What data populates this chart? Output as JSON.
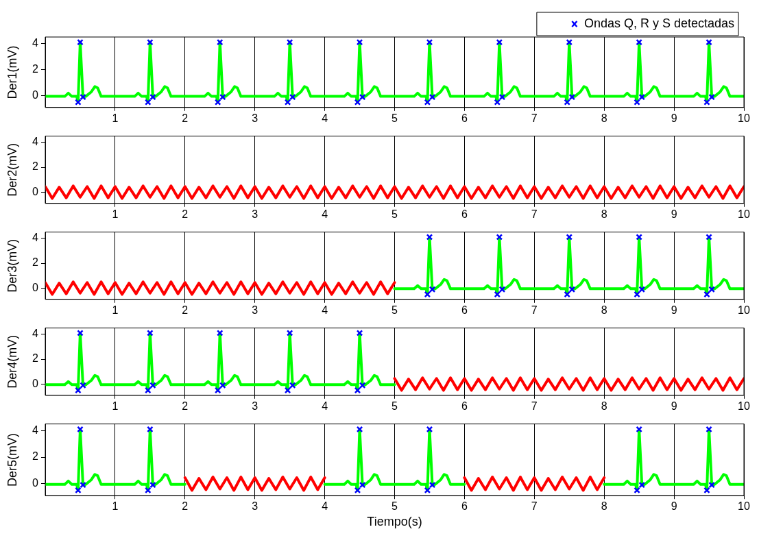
{
  "chart_data": [
    {
      "type": "line",
      "ylabel": "Der1(mV)",
      "xlim": [
        0,
        10
      ],
      "xticks": [
        1,
        2,
        3,
        4,
        5,
        6,
        7,
        8,
        9,
        10
      ],
      "ylim": [
        -0.9,
        4.5
      ],
      "yticks": [
        0,
        2,
        4
      ],
      "grid": "x",
      "legend": "top right",
      "series": [
        {
          "color": "#00ff00",
          "x": [
            0,
            0.28,
            0.33,
            0.38,
            0.45,
            0.47,
            0.5,
            0.54,
            0.58,
            0.66,
            0.71,
            0.75,
            0.8,
            1.28,
            1.33,
            1.38,
            1.45,
            1.47,
            1.5,
            1.54,
            1.58,
            1.66,
            1.71,
            1.75,
            1.8,
            2.28,
            2.33,
            2.38,
            2.45,
            2.47,
            2.5,
            2.54,
            2.58,
            2.66,
            2.71,
            2.75,
            2.8,
            3.28,
            3.33,
            3.38,
            3.45,
            3.47,
            3.5,
            3.54,
            3.58,
            3.66,
            3.71,
            3.75,
            3.8,
            4.28,
            4.33,
            4.38,
            4.45,
            4.47,
            4.5,
            4.54,
            4.58,
            4.66,
            4.71,
            4.75,
            4.8,
            5.28,
            5.33,
            5.38,
            5.45,
            5.47,
            5.5,
            5.54,
            5.58,
            5.66,
            5.71,
            5.75,
            5.8,
            6.28,
            6.33,
            6.38,
            6.45,
            6.47,
            6.5,
            6.54,
            6.58,
            6.66,
            6.71,
            6.75,
            6.8,
            7.28,
            7.33,
            7.38,
            7.45,
            7.47,
            7.5,
            7.54,
            7.58,
            7.66,
            7.71,
            7.75,
            7.8,
            8.28,
            8.33,
            8.38,
            8.45,
            8.47,
            8.5,
            8.54,
            8.58,
            8.66,
            8.71,
            8.75,
            8.8,
            9.28,
            9.33,
            9.38,
            9.45,
            9.47,
            9.5,
            9.54,
            9.58,
            9.66,
            9.71,
            9.75,
            9.8,
            10
          ],
          "values": [
            -0.05,
            -0.05,
            0.2,
            -0.05,
            -0.05,
            -0.5,
            4.1,
            -0.1,
            -0.05,
            0.3,
            0.7,
            0.6,
            -0.05,
            -0.05,
            0.2,
            -0.05,
            -0.05,
            -0.5,
            4.1,
            -0.1,
            -0.05,
            0.3,
            0.7,
            0.6,
            -0.05,
            -0.05,
            0.2,
            -0.05,
            -0.05,
            -0.5,
            4.1,
            -0.1,
            -0.05,
            0.3,
            0.7,
            0.6,
            -0.05,
            -0.05,
            0.2,
            -0.05,
            -0.05,
            -0.5,
            4.1,
            -0.1,
            -0.05,
            0.3,
            0.7,
            0.6,
            -0.05,
            -0.05,
            0.2,
            -0.05,
            -0.05,
            -0.5,
            4.1,
            -0.1,
            -0.05,
            0.3,
            0.7,
            0.6,
            -0.05,
            -0.05,
            0.2,
            -0.05,
            -0.05,
            -0.5,
            4.1,
            -0.1,
            -0.05,
            0.3,
            0.7,
            0.6,
            -0.05,
            -0.05,
            0.2,
            -0.05,
            -0.05,
            -0.5,
            4.1,
            -0.1,
            -0.05,
            0.3,
            0.7,
            0.6,
            -0.05,
            -0.05,
            0.2,
            -0.05,
            -0.05,
            -0.5,
            4.1,
            -0.1,
            -0.05,
            0.3,
            0.7,
            0.6,
            -0.05,
            -0.05,
            0.2,
            -0.05,
            -0.05,
            -0.5,
            4.1,
            -0.1,
            -0.05,
            0.3,
            0.7,
            0.6,
            -0.05,
            -0.05,
            0.2,
            -0.05,
            -0.05,
            -0.5,
            4.1,
            -0.1,
            -0.05,
            0.3,
            0.7,
            0.6,
            -0.05,
            -0.05
          ]
        },
        {
          "type": "scatter",
          "name": "Ondas Q, R y S detectadas",
          "color": "#0000ff",
          "marker": "cross",
          "x": [
            0.47,
            0.5,
            0.54,
            1.47,
            1.5,
            1.54,
            2.47,
            2.5,
            2.54,
            3.47,
            3.5,
            3.54,
            4.47,
            4.5,
            4.54,
            5.47,
            5.5,
            5.54,
            6.47,
            6.5,
            6.54,
            7.47,
            7.5,
            7.54,
            8.47,
            8.5,
            8.54,
            9.47,
            9.5,
            9.54
          ],
          "values": [
            -0.5,
            4.1,
            -0.1,
            -0.5,
            4.1,
            -0.1,
            -0.5,
            4.1,
            -0.1,
            -0.5,
            4.1,
            -0.1,
            -0.5,
            4.1,
            -0.1,
            -0.5,
            4.1,
            -0.1,
            -0.5,
            4.1,
            -0.1,
            -0.5,
            4.1,
            -0.1,
            -0.5,
            4.1,
            -0.1,
            -0.5,
            4.1,
            -0.1
          ]
        }
      ]
    },
    {
      "type": "line",
      "ylabel": "Der2(mV)",
      "xlim": [
        0,
        10
      ],
      "xticks": [
        1,
        2,
        3,
        4,
        5,
        6,
        7,
        8,
        9,
        10
      ],
      "ylim": [
        -0.9,
        4.5
      ],
      "yticks": [
        0,
        2,
        4
      ],
      "grid": "x",
      "series": [
        {
          "color": "#ff0000",
          "x": [
            0,
            0.1,
            0.2,
            0.3,
            0.4,
            0.5,
            0.6,
            0.7,
            0.8,
            0.9,
            1,
            1.1,
            1.2,
            1.3,
            1.4,
            1.5,
            1.6,
            1.7,
            1.8,
            1.9,
            2,
            2.1,
            2.2,
            2.3,
            2.4,
            2.5,
            2.6,
            2.7,
            2.8,
            2.9,
            3,
            3.1,
            3.2,
            3.3,
            3.4,
            3.5,
            3.6,
            3.7,
            3.8,
            3.9,
            4,
            4.1,
            4.2,
            4.3,
            4.4,
            4.5,
            4.6,
            4.7,
            4.8,
            4.9,
            5,
            5.1,
            5.2,
            5.3,
            5.4,
            5.5,
            5.6,
            5.7,
            5.8,
            5.9,
            6,
            6.1,
            6.2,
            6.3,
            6.4,
            6.5,
            6.6,
            6.7,
            6.8,
            6.9,
            7,
            7.1,
            7.2,
            7.3,
            7.4,
            7.5,
            7.6,
            7.7,
            7.8,
            7.9,
            8,
            8.1,
            8.2,
            8.3,
            8.4,
            8.5,
            8.6,
            8.7,
            8.8,
            8.9,
            9,
            9.1,
            9.2,
            9.3,
            9.4,
            9.5,
            9.6,
            9.7,
            9.8,
            9.9,
            10
          ],
          "values": [
            0.45,
            -0.5,
            0.4,
            -0.45,
            0.5,
            -0.4,
            0.45,
            -0.5,
            0.5,
            -0.45,
            0.45,
            -0.5,
            0.4,
            -0.45,
            0.5,
            -0.4,
            0.45,
            -0.5,
            0.5,
            -0.45,
            0.45,
            -0.5,
            0.4,
            -0.45,
            0.5,
            -0.4,
            0.45,
            -0.5,
            0.5,
            -0.45,
            0.45,
            -0.5,
            0.4,
            -0.45,
            0.5,
            -0.4,
            0.45,
            -0.5,
            0.5,
            -0.45,
            0.45,
            -0.5,
            0.4,
            -0.45,
            0.5,
            -0.4,
            0.45,
            -0.5,
            0.5,
            -0.45,
            0.45,
            -0.5,
            0.4,
            -0.45,
            0.5,
            -0.4,
            0.45,
            -0.5,
            0.5,
            -0.45,
            0.45,
            -0.5,
            0.4,
            -0.45,
            0.5,
            -0.4,
            0.45,
            -0.5,
            0.5,
            -0.45,
            0.45,
            -0.5,
            0.4,
            -0.45,
            0.5,
            -0.4,
            0.45,
            -0.5,
            0.5,
            -0.45,
            0.45,
            -0.5,
            0.4,
            -0.45,
            0.5,
            -0.4,
            0.45,
            -0.5,
            0.5,
            -0.45,
            0.45,
            -0.5,
            0.4,
            -0.45,
            0.5,
            -0.4,
            0.45,
            -0.5,
            0.5,
            -0.45,
            0.45
          ]
        }
      ]
    },
    {
      "type": "line",
      "ylabel": "Der3(mV)",
      "xlim": [
        0,
        10
      ],
      "xticks": [
        1,
        2,
        3,
        4,
        5,
        6,
        7,
        8,
        9,
        10
      ],
      "ylim": [
        -0.9,
        4.5
      ],
      "yticks": [
        0,
        2,
        4
      ],
      "grid": "x",
      "series": [
        {
          "color": "#ff0000",
          "x": [
            0,
            0.1,
            0.2,
            0.3,
            0.4,
            0.5,
            0.6,
            0.7,
            0.8,
            0.9,
            1,
            1.1,
            1.2,
            1.3,
            1.4,
            1.5,
            1.6,
            1.7,
            1.8,
            1.9,
            2,
            2.1,
            2.2,
            2.3,
            2.4,
            2.5,
            2.6,
            2.7,
            2.8,
            2.9,
            3,
            3.1,
            3.2,
            3.3,
            3.4,
            3.5,
            3.6,
            3.7,
            3.8,
            3.9,
            4,
            4.1,
            4.2,
            4.3,
            4.4,
            4.5,
            4.6,
            4.7,
            4.8,
            4.9,
            5
          ],
          "values": [
            0.45,
            -0.5,
            0.4,
            -0.45,
            0.5,
            -0.4,
            0.45,
            -0.5,
            0.5,
            -0.45,
            0.45,
            -0.5,
            0.4,
            -0.45,
            0.5,
            -0.4,
            0.45,
            -0.5,
            0.5,
            -0.45,
            0.45,
            -0.5,
            0.4,
            -0.45,
            0.5,
            -0.4,
            0.45,
            -0.5,
            0.5,
            -0.45,
            0.45,
            -0.5,
            0.4,
            -0.45,
            0.5,
            -0.4,
            0.45,
            -0.5,
            0.5,
            -0.45,
            0.45,
            -0.5,
            0.4,
            -0.45,
            0.5,
            -0.4,
            0.45,
            -0.5,
            0.5,
            -0.45,
            0.45
          ]
        },
        {
          "color": "#00ff00",
          "x": [
            5,
            5.28,
            5.33,
            5.38,
            5.45,
            5.47,
            5.5,
            5.54,
            5.58,
            5.66,
            5.71,
            5.75,
            5.8,
            6.28,
            6.33,
            6.38,
            6.45,
            6.47,
            6.5,
            6.54,
            6.58,
            6.66,
            6.71,
            6.75,
            6.8,
            7.28,
            7.33,
            7.38,
            7.45,
            7.47,
            7.5,
            7.54,
            7.58,
            7.66,
            7.71,
            7.75,
            7.8,
            8.28,
            8.33,
            8.38,
            8.45,
            8.47,
            8.5,
            8.54,
            8.58,
            8.66,
            8.71,
            8.75,
            8.8,
            9.28,
            9.33,
            9.38,
            9.45,
            9.47,
            9.5,
            9.54,
            9.58,
            9.66,
            9.71,
            9.75,
            9.8,
            10
          ],
          "values": [
            -0.05,
            -0.05,
            0.2,
            -0.05,
            -0.05,
            -0.5,
            4.1,
            -0.1,
            -0.05,
            0.3,
            0.7,
            0.6,
            -0.05,
            -0.05,
            0.2,
            -0.05,
            -0.05,
            -0.5,
            4.1,
            -0.1,
            -0.05,
            0.3,
            0.7,
            0.6,
            -0.05,
            -0.05,
            0.2,
            -0.05,
            -0.05,
            -0.5,
            4.1,
            -0.1,
            -0.05,
            0.3,
            0.7,
            0.6,
            -0.05,
            -0.05,
            0.2,
            -0.05,
            -0.05,
            -0.5,
            4.1,
            -0.1,
            -0.05,
            0.3,
            0.7,
            0.6,
            -0.05,
            -0.05,
            0.2,
            -0.05,
            -0.05,
            -0.5,
            4.1,
            -0.1,
            -0.05,
            0.3,
            0.7,
            0.6,
            -0.05,
            -0.05
          ]
        },
        {
          "type": "scatter",
          "color": "#0000ff",
          "marker": "cross",
          "x": [
            5.47,
            5.5,
            5.54,
            6.47,
            6.5,
            6.54,
            7.47,
            7.5,
            7.54,
            8.47,
            8.5,
            8.54,
            9.47,
            9.5,
            9.54
          ],
          "values": [
            -0.5,
            4.1,
            -0.1,
            -0.5,
            4.1,
            -0.1,
            -0.5,
            4.1,
            -0.1,
            -0.5,
            4.1,
            -0.1,
            -0.5,
            4.1,
            -0.1
          ]
        }
      ]
    },
    {
      "type": "line",
      "ylabel": "Der4(mV)",
      "xlim": [
        0,
        10
      ],
      "xticks": [
        1,
        2,
        3,
        4,
        5,
        6,
        7,
        8,
        9,
        10
      ],
      "ylim": [
        -0.9,
        4.5
      ],
      "yticks": [
        0,
        2,
        4
      ],
      "grid": "x",
      "series": [
        {
          "color": "#00ff00",
          "x": [
            0,
            0.28,
            0.33,
            0.38,
            0.45,
            0.47,
            0.5,
            0.54,
            0.58,
            0.66,
            0.71,
            0.75,
            0.8,
            1.28,
            1.33,
            1.38,
            1.45,
            1.47,
            1.5,
            1.54,
            1.58,
            1.66,
            1.71,
            1.75,
            1.8,
            2.28,
            2.33,
            2.38,
            2.45,
            2.47,
            2.5,
            2.54,
            2.58,
            2.66,
            2.71,
            2.75,
            2.8,
            3.28,
            3.33,
            3.38,
            3.45,
            3.47,
            3.5,
            3.54,
            3.58,
            3.66,
            3.71,
            3.75,
            3.8,
            4.28,
            4.33,
            4.38,
            4.45,
            4.47,
            4.5,
            4.54,
            4.58,
            4.66,
            4.71,
            4.75,
            4.8,
            5
          ],
          "values": [
            -0.05,
            -0.05,
            0.2,
            -0.05,
            -0.05,
            -0.5,
            4.1,
            -0.1,
            -0.05,
            0.3,
            0.7,
            0.6,
            -0.05,
            -0.05,
            0.2,
            -0.05,
            -0.05,
            -0.5,
            4.1,
            -0.1,
            -0.05,
            0.3,
            0.7,
            0.6,
            -0.05,
            -0.05,
            0.2,
            -0.05,
            -0.05,
            -0.5,
            4.1,
            -0.1,
            -0.05,
            0.3,
            0.7,
            0.6,
            -0.05,
            -0.05,
            0.2,
            -0.05,
            -0.05,
            -0.5,
            4.1,
            -0.1,
            -0.05,
            0.3,
            0.7,
            0.6,
            -0.05,
            -0.05,
            0.2,
            -0.05,
            -0.05,
            -0.5,
            4.1,
            -0.1,
            -0.05,
            0.3,
            0.7,
            0.6,
            -0.05,
            -0.05
          ]
        },
        {
          "color": "#ff0000",
          "x": [
            5,
            5.1,
            5.2,
            5.3,
            5.4,
            5.5,
            5.6,
            5.7,
            5.8,
            5.9,
            6,
            6.1,
            6.2,
            6.3,
            6.4,
            6.5,
            6.6,
            6.7,
            6.8,
            6.9,
            7,
            7.1,
            7.2,
            7.3,
            7.4,
            7.5,
            7.6,
            7.7,
            7.8,
            7.9,
            8,
            8.1,
            8.2,
            8.3,
            8.4,
            8.5,
            8.6,
            8.7,
            8.8,
            8.9,
            9,
            9.1,
            9.2,
            9.3,
            9.4,
            9.5,
            9.6,
            9.7,
            9.8,
            9.9,
            10
          ],
          "values": [
            0.45,
            -0.5,
            0.4,
            -0.45,
            0.5,
            -0.4,
            0.45,
            -0.5,
            0.5,
            -0.45,
            0.45,
            -0.5,
            0.4,
            -0.45,
            0.5,
            -0.4,
            0.45,
            -0.5,
            0.5,
            -0.45,
            0.45,
            -0.5,
            0.4,
            -0.45,
            0.5,
            -0.4,
            0.45,
            -0.5,
            0.5,
            -0.45,
            0.45,
            -0.5,
            0.4,
            -0.45,
            0.5,
            -0.4,
            0.45,
            -0.5,
            0.5,
            -0.45,
            0.45,
            -0.5,
            0.4,
            -0.45,
            0.5,
            -0.4,
            0.45,
            -0.5,
            0.5,
            -0.45,
            0.45
          ]
        },
        {
          "type": "scatter",
          "color": "#0000ff",
          "marker": "cross",
          "x": [
            0.47,
            0.5,
            0.54,
            1.47,
            1.5,
            1.54,
            2.47,
            2.5,
            2.54,
            3.47,
            3.5,
            3.54,
            4.47,
            4.5,
            4.54
          ],
          "values": [
            -0.5,
            4.1,
            -0.1,
            -0.5,
            4.1,
            -0.1,
            -0.5,
            4.1,
            -0.1,
            -0.5,
            4.1,
            -0.1,
            -0.5,
            4.1,
            -0.1
          ]
        }
      ]
    },
    {
      "type": "line",
      "ylabel": "Der5(mV)",
      "xlabel": "Tiempo(s)",
      "xlim": [
        0,
        10
      ],
      "xticks": [
        1,
        2,
        3,
        4,
        5,
        6,
        7,
        8,
        9,
        10
      ],
      "ylim": [
        -0.9,
        4.5
      ],
      "yticks": [
        0,
        2,
        4
      ],
      "grid": "x",
      "series": [
        {
          "color": "#00ff00",
          "x": [
            0,
            0.28,
            0.33,
            0.38,
            0.45,
            0.47,
            0.5,
            0.54,
            0.58,
            0.66,
            0.71,
            0.75,
            0.8,
            1.28,
            1.33,
            1.38,
            1.45,
            1.47,
            1.5,
            1.54,
            1.58,
            1.66,
            1.71,
            1.75,
            1.8,
            2,
            3,
            4,
            4.28,
            4.33,
            4.38,
            4.45,
            4.47,
            4.5,
            4.54,
            4.58,
            4.66,
            4.71,
            4.75,
            4.8,
            5.28,
            5.33,
            5.38,
            5.45,
            5.47,
            5.5,
            5.54,
            5.58,
            5.66,
            5.71,
            5.75,
            5.8,
            6,
            7,
            8,
            8.28,
            8.33,
            8.38,
            8.45,
            8.47,
            8.5,
            8.54,
            8.58,
            8.66,
            8.71,
            8.75,
            8.8,
            9.28,
            9.33,
            9.38,
            9.45,
            9.47,
            9.5,
            9.54,
            9.58,
            9.66,
            9.71,
            9.75,
            9.8,
            10
          ],
          "values": [
            -0.05,
            -0.05,
            0.2,
            -0.05,
            -0.05,
            -0.5,
            4.1,
            -0.1,
            -0.05,
            0.3,
            0.7,
            0.6,
            -0.05,
            -0.05,
            0.2,
            -0.05,
            -0.05,
            -0.5,
            4.1,
            -0.1,
            -0.05,
            0.3,
            0.7,
            0.6,
            -0.05,
            -0.05,
            null,
            -0.05,
            -0.05,
            0.2,
            -0.05,
            -0.05,
            -0.5,
            4.1,
            -0.1,
            -0.05,
            0.3,
            0.7,
            0.6,
            -0.05,
            -0.05,
            0.2,
            -0.05,
            -0.05,
            -0.5,
            4.1,
            -0.1,
            -0.05,
            0.3,
            0.7,
            0.6,
            -0.05,
            -0.05,
            null,
            -0.05,
            -0.05,
            0.2,
            -0.05,
            -0.05,
            -0.5,
            4.1,
            -0.1,
            -0.05,
            0.3,
            0.7,
            0.6,
            -0.05,
            -0.05,
            0.2,
            -0.05,
            -0.05,
            -0.5,
            4.1,
            -0.1,
            -0.05,
            0.3,
            0.7,
            0.6,
            -0.05,
            -0.05
          ]
        },
        {
          "color": "#ff0000",
          "x": [
            2,
            2.1,
            2.2,
            2.3,
            2.4,
            2.5,
            2.6,
            2.7,
            2.8,
            2.9,
            3,
            3.1,
            3.2,
            3.3,
            3.4,
            3.5,
            3.6,
            3.7,
            3.8,
            3.9,
            4,
            5,
            6,
            6.1,
            6.2,
            6.3,
            6.4,
            6.5,
            6.6,
            6.7,
            6.8,
            6.9,
            7,
            7.1,
            7.2,
            7.3,
            7.4,
            7.5,
            7.6,
            7.7,
            7.8,
            7.9,
            8
          ],
          "values": [
            0.45,
            -0.5,
            0.4,
            -0.45,
            0.5,
            -0.4,
            0.45,
            -0.5,
            0.5,
            -0.45,
            0.45,
            -0.5,
            0.4,
            -0.45,
            0.5,
            -0.4,
            0.45,
            -0.5,
            0.5,
            -0.45,
            0.45,
            null,
            0.45,
            -0.5,
            0.4,
            -0.45,
            0.5,
            -0.4,
            0.45,
            -0.5,
            0.5,
            -0.45,
            0.45,
            -0.5,
            0.4,
            -0.45,
            0.5,
            -0.4,
            0.45,
            -0.5,
            0.5,
            -0.45,
            0.45
          ]
        },
        {
          "type": "scatter",
          "color": "#0000ff",
          "marker": "cross",
          "x": [
            0.47,
            0.5,
            0.54,
            1.47,
            1.5,
            1.54,
            4.47,
            4.5,
            4.54,
            5.47,
            5.5,
            5.54,
            8.47,
            8.5,
            8.54,
            9.47,
            9.5,
            9.54
          ],
          "values": [
            -0.5,
            4.1,
            -0.1,
            -0.5,
            4.1,
            -0.1,
            -0.5,
            4.1,
            -0.1,
            -0.5,
            4.1,
            -0.1,
            -0.5,
            4.1,
            -0.1,
            -0.5,
            4.1,
            -0.1
          ]
        }
      ]
    }
  ]
}
